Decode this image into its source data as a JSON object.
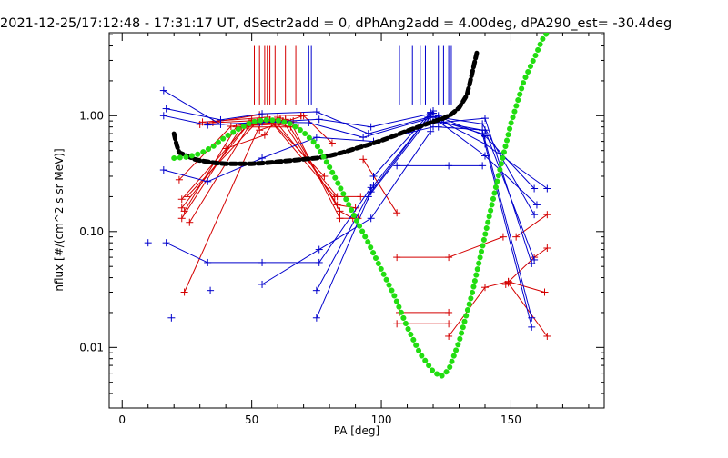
{
  "chart_data": {
    "type": "line",
    "title": "2021-12-25/17:12:48 - 17:31:17 UT, dSectr2add = 0, dPhAng2add = 4.00deg, dPA290_est= -30.4deg",
    "xlabel": "PA [deg]",
    "ylabel": "nflux [#/(cm^2 s sr MeV)]",
    "xlim": [
      -5,
      186
    ],
    "ylim": [
      0.003,
      5.2
    ],
    "yscale": "log",
    "x_ticks": [
      0,
      50,
      100,
      150
    ],
    "x_tick_labels": [
      "0",
      "50",
      "100",
      "150"
    ],
    "y_ticks": [
      0.01,
      0.1,
      1.0
    ],
    "y_tick_labels": [
      "0.01",
      "0.10",
      "1.00"
    ],
    "grid": false,
    "colors": {
      "red": "#d40000",
      "blue": "#0000cc",
      "green": "#22dd11",
      "black": "#000000"
    },
    "series": [
      {
        "color": "red",
        "points": [
          [
            53,
            0.75
          ],
          [
            70,
            1.0
          ],
          [
            81,
            0.58
          ]
        ]
      },
      {
        "color": "red",
        "points": [
          [
            30,
            0.84
          ],
          [
            53,
            1.02
          ],
          [
            69,
            1.0
          ]
        ]
      },
      {
        "color": "red",
        "points": [
          [
            40,
            0.52
          ],
          [
            55,
            0.68
          ],
          [
            60,
            0.97
          ]
        ]
      },
      {
        "color": "red",
        "points": [
          [
            35,
            0.87
          ],
          [
            57,
            0.92
          ],
          [
            78,
            0.3
          ]
        ]
      },
      {
        "color": "red",
        "points": [
          [
            31,
            0.88
          ],
          [
            56,
            0.97
          ],
          [
            82,
            0.2
          ]
        ]
      },
      {
        "color": "red",
        "points": [
          [
            22,
            0.28
          ],
          [
            42,
            0.81
          ],
          [
            60,
            0.92
          ]
        ]
      },
      {
        "color": "red",
        "points": [
          [
            24,
            0.15
          ],
          [
            44,
            0.8
          ],
          [
            63,
            0.92
          ]
        ]
      },
      {
        "color": "red",
        "points": [
          [
            23,
            0.13
          ],
          [
            46,
            0.8
          ],
          [
            65,
            0.8
          ]
        ]
      },
      {
        "color": "red",
        "points": [
          [
            23,
            0.19
          ],
          [
            48,
            0.82
          ],
          [
            66,
            0.9
          ]
        ]
      },
      {
        "color": "red",
        "points": [
          [
            23,
            0.16
          ],
          [
            50,
            0.92
          ],
          [
            68,
            0.78
          ]
        ]
      },
      {
        "color": "red",
        "points": [
          [
            24,
            0.03
          ],
          [
            54,
            0.91
          ],
          [
            59,
            0.88
          ]
        ]
      },
      {
        "color": "red",
        "points": [
          [
            25,
            0.2
          ],
          [
            52,
            0.88
          ],
          [
            61,
            0.95
          ]
        ]
      },
      {
        "color": "red",
        "points": [
          [
            26,
            0.12
          ],
          [
            49,
            0.82
          ],
          [
            63,
            0.85
          ]
        ]
      },
      {
        "color": "red",
        "points": [
          [
            60,
            0.85
          ],
          [
            83,
            0.2
          ],
          [
            92,
            0.2
          ]
        ]
      },
      {
        "color": "red",
        "points": [
          [
            62,
            0.9
          ],
          [
            83,
            0.17
          ],
          [
            90,
            0.16
          ]
        ]
      },
      {
        "color": "red",
        "points": [
          [
            63,
            0.93
          ],
          [
            84,
            0.15
          ],
          [
            89,
            0.13
          ]
        ]
      },
      {
        "color": "red",
        "points": [
          [
            65,
            0.88
          ],
          [
            84,
            0.13
          ],
          [
            91,
            0.13
          ]
        ]
      },
      {
        "color": "red",
        "points": [
          [
            93,
            0.42
          ],
          [
            106,
            0.145
          ]
        ]
      },
      {
        "color": "red",
        "points": [
          [
            106,
            0.06
          ],
          [
            126,
            0.06
          ],
          [
            147,
            0.09
          ]
        ]
      },
      {
        "color": "red",
        "points": [
          [
            106,
            0.016
          ],
          [
            126,
            0.016
          ]
        ]
      },
      {
        "color": "red",
        "points": [
          [
            107,
            0.02
          ],
          [
            126,
            0.02
          ]
        ]
      },
      {
        "color": "red",
        "points": [
          [
            126,
            0.0125
          ],
          [
            140,
            0.033
          ],
          [
            149,
            0.037
          ]
        ]
      },
      {
        "color": "red",
        "points": [
          [
            149,
            0.036
          ],
          [
            164,
            0.0125
          ]
        ]
      },
      {
        "color": "red",
        "points": [
          [
            149,
            0.037
          ],
          [
            163,
            0.03
          ]
        ]
      },
      {
        "color": "red",
        "points": [
          [
            152,
            0.09
          ],
          [
            164,
            0.14
          ]
        ]
      },
      {
        "color": "red",
        "points": [
          [
            148,
            0.035
          ],
          [
            159,
            0.06
          ],
          [
            164,
            0.072
          ]
        ]
      },
      {
        "color": "blue",
        "points": [
          [
            16,
            1.65
          ],
          [
            38,
            0.84
          ],
          [
            53,
            0.87
          ],
          [
            76,
            0.93
          ],
          [
            96,
            0.8
          ],
          [
            120,
            1.05
          ]
        ]
      },
      {
        "color": "blue",
        "points": [
          [
            17,
            1.15
          ],
          [
            38,
            0.92
          ],
          [
            54,
            1.04
          ],
          [
            75,
            1.08
          ],
          [
            95,
            0.7
          ],
          [
            119,
            0.98
          ]
        ]
      },
      {
        "color": "blue",
        "points": [
          [
            16,
            1.0
          ],
          [
            33,
            0.83
          ],
          [
            54,
            0.88
          ],
          [
            72,
            0.87
          ],
          [
            93,
            0.65
          ],
          [
            122,
            1.0
          ]
        ]
      },
      {
        "color": "blue",
        "points": [
          [
            16,
            0.34
          ],
          [
            33,
            0.27
          ],
          [
            54,
            0.43
          ],
          [
            75,
            0.65
          ],
          [
            97,
            0.6
          ],
          [
            120,
            0.8
          ]
        ]
      },
      {
        "color": "blue",
        "points": [
          [
            17,
            0.08
          ],
          [
            33,
            0.054
          ],
          [
            54,
            0.054
          ],
          [
            76,
            0.054
          ],
          [
            96,
            0.24
          ]
        ]
      },
      {
        "color": "blue",
        "points": [
          [
            54,
            0.035
          ],
          [
            76,
            0.07
          ],
          [
            96,
            0.13
          ],
          [
            119,
            0.73
          ]
        ]
      },
      {
        "color": "blue",
        "points": [
          [
            75,
            0.031
          ],
          [
            97,
            0.25
          ],
          [
            120,
            1.1
          ]
        ]
      },
      {
        "color": "blue",
        "points": [
          [
            75,
            0.018
          ],
          [
            96,
            0.22
          ],
          [
            118,
            0.97
          ]
        ]
      },
      {
        "color": "blue",
        "points": [
          [
            95,
            0.2
          ],
          [
            120,
            1.05
          ]
        ]
      },
      {
        "color": "blue",
        "points": [
          [
            97,
            0.3
          ],
          [
            119,
            1.07
          ]
        ]
      },
      {
        "color": "blue",
        "points": [
          [
            106,
            0.37
          ],
          [
            126,
            0.37
          ],
          [
            139,
            0.37
          ]
        ]
      },
      {
        "color": "blue",
        "points": [
          [
            119,
            1.05
          ],
          [
            140,
            0.67
          ],
          [
            159,
            0.235
          ]
        ]
      },
      {
        "color": "blue",
        "points": [
          [
            120,
            0.98
          ],
          [
            140,
            0.57
          ],
          [
            164,
            0.235
          ]
        ]
      },
      {
        "color": "blue",
        "points": [
          [
            122,
            0.97
          ],
          [
            139,
            0.85
          ],
          [
            159,
            0.14
          ]
        ]
      },
      {
        "color": "blue",
        "points": [
          [
            121,
            0.93
          ],
          [
            140,
            0.45
          ],
          [
            160,
            0.17
          ]
        ]
      },
      {
        "color": "blue",
        "points": [
          [
            122,
            0.8
          ],
          [
            140,
            0.75
          ],
          [
            159,
            0.057
          ]
        ]
      },
      {
        "color": "blue",
        "points": [
          [
            120,
            0.9
          ],
          [
            139,
            0.75
          ],
          [
            158,
            0.018
          ]
        ]
      },
      {
        "color": "blue",
        "points": [
          [
            124,
            0.88
          ],
          [
            139,
            0.7
          ],
          [
            158,
            0.015
          ]
        ]
      },
      {
        "color": "blue",
        "points": [
          [
            119,
            0.86
          ],
          [
            140,
            0.95
          ],
          [
            158,
            0.053
          ]
        ]
      }
    ],
    "isolated_markers": [
      {
        "color": "blue",
        "x": 10,
        "y": 0.08
      },
      {
        "color": "blue",
        "x": 19,
        "y": 0.018
      },
      {
        "color": "blue",
        "x": 34,
        "y": 0.031
      },
      {
        "color": "red",
        "x": 69,
        "y": 1.0
      }
    ],
    "marker_ticks": {
      "red": [
        51,
        53,
        55,
        56,
        57,
        59,
        63,
        67
      ],
      "blue": [
        72,
        73,
        107,
        112,
        115,
        117,
        122,
        124,
        126,
        127
      ],
      "y_top": 4.0,
      "y_bottom": 1.25
    },
    "fit_curves": [
      {
        "color": "black",
        "style": "dashed",
        "points": [
          [
            20,
            0.7
          ],
          [
            21,
            0.56
          ],
          [
            22,
            0.48
          ],
          [
            24,
            0.46
          ],
          [
            26,
            0.44
          ],
          [
            28,
            0.42
          ],
          [
            30,
            0.41
          ],
          [
            33,
            0.4
          ],
          [
            36,
            0.39
          ],
          [
            40,
            0.385
          ],
          [
            45,
            0.385
          ],
          [
            50,
            0.385
          ],
          [
            55,
            0.39
          ],
          [
            60,
            0.4
          ],
          [
            65,
            0.41
          ],
          [
            70,
            0.42
          ],
          [
            75,
            0.43
          ],
          [
            80,
            0.45
          ],
          [
            85,
            0.48
          ],
          [
            90,
            0.52
          ],
          [
            95,
            0.56
          ],
          [
            100,
            0.61
          ],
          [
            105,
            0.67
          ],
          [
            110,
            0.74
          ],
          [
            115,
            0.81
          ],
          [
            120,
            0.89
          ],
          [
            124,
            0.95
          ],
          [
            127,
            1.03
          ],
          [
            130,
            1.17
          ],
          [
            133,
            1.5
          ],
          [
            134,
            1.85
          ],
          [
            135,
            2.3
          ],
          [
            136,
            2.9
          ],
          [
            137,
            3.6
          ]
        ]
      },
      {
        "color": "green",
        "style": "dotted",
        "points": [
          [
            20,
            0.43
          ],
          [
            25,
            0.44
          ],
          [
            30,
            0.47
          ],
          [
            35,
            0.54
          ],
          [
            40,
            0.66
          ],
          [
            45,
            0.77
          ],
          [
            50,
            0.88
          ],
          [
            55,
            0.92
          ],
          [
            60,
            0.91
          ],
          [
            65,
            0.85
          ],
          [
            70,
            0.72
          ],
          [
            75,
            0.56
          ],
          [
            80,
            0.36
          ],
          [
            85,
            0.22
          ],
          [
            90,
            0.13
          ],
          [
            95,
            0.08
          ],
          [
            100,
            0.047
          ],
          [
            105,
            0.028
          ],
          [
            110,
            0.015
          ],
          [
            115,
            0.0088
          ],
          [
            120,
            0.0062
          ],
          [
            123,
            0.0056
          ],
          [
            126,
            0.0064
          ],
          [
            130,
            0.0112
          ],
          [
            135,
            0.029
          ],
          [
            140,
            0.093
          ],
          [
            145,
            0.29
          ],
          [
            150,
            0.86
          ],
          [
            155,
            2.0
          ],
          [
            160,
            3.5
          ],
          [
            162,
            4.5
          ],
          [
            164,
            5.2
          ]
        ]
      }
    ]
  }
}
